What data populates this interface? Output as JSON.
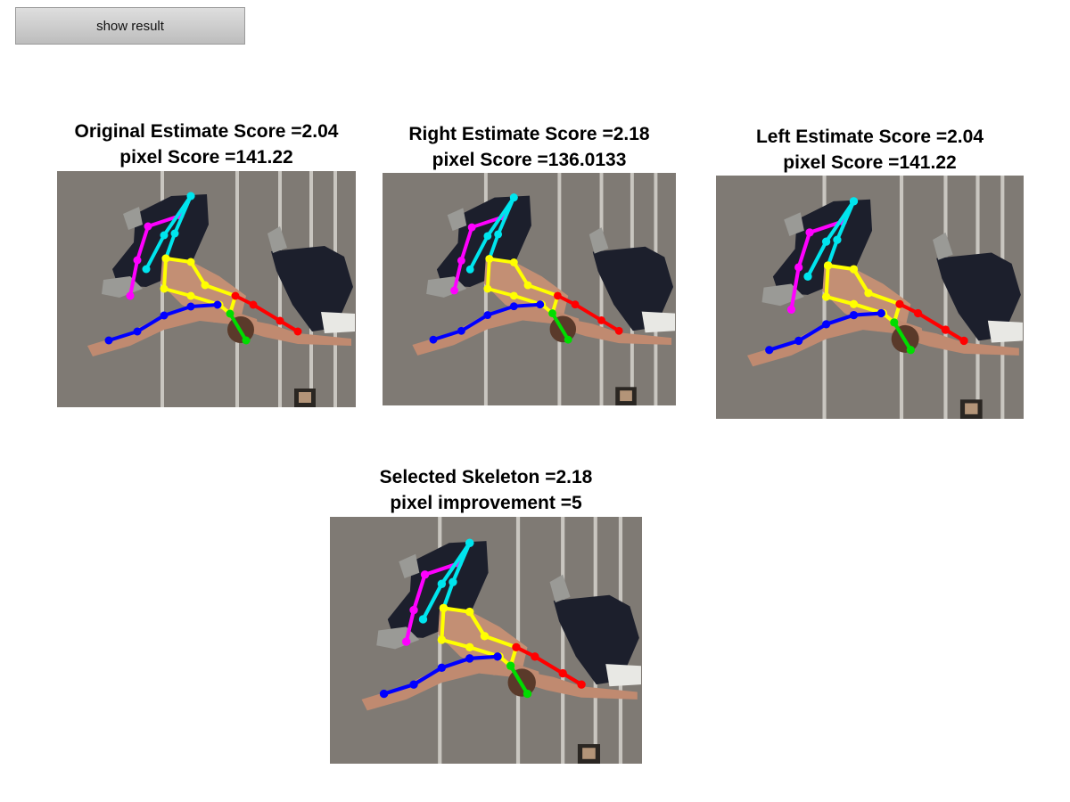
{
  "button": {
    "label": "show result"
  },
  "panels": [
    {
      "name": "original",
      "line1": "Original Estimate Score =2.04",
      "line2": "pixel Score =141.22"
    },
    {
      "name": "right",
      "line1": "Right Estimate Score =2.18",
      "line2": "pixel Score =136.0133"
    },
    {
      "name": "left",
      "line1": "Left Estimate Score =2.04",
      "line2": "pixel Score =141.22"
    },
    {
      "name": "selected",
      "line1": "Selected Skeleton =2.18",
      "line2": "pixel improvement =5"
    }
  ],
  "colors": {
    "magenta_limb": "#ff00ff",
    "cyan_limb": "#00e5ee",
    "yellow_limb": "#ffff00",
    "blue_limb": "#0000ff",
    "red_limb": "#ff0000",
    "green_limb": "#00dd00"
  }
}
